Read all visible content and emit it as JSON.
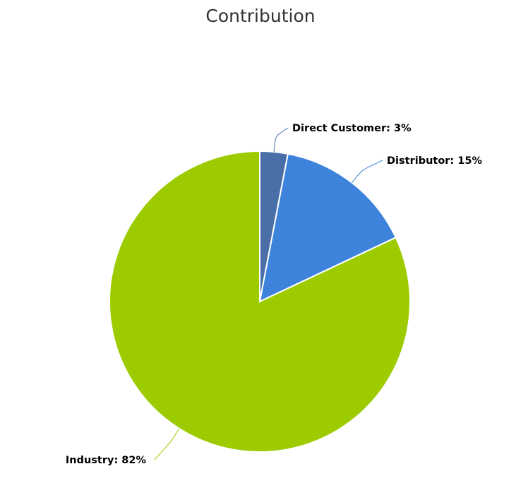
{
  "chart_data": {
    "type": "pie",
    "title": "Contribution",
    "start_angle_deg": 0,
    "direction": "clockwise",
    "slices": [
      {
        "name": "Direct Customer",
        "value": 3,
        "label": "Direct Customer: 3%",
        "color": "#4a6fa8"
      },
      {
        "name": "Distributor",
        "value": 15,
        "label": "Distributor: 15%",
        "color": "#3d83dc"
      },
      {
        "name": "Industry",
        "value": 82,
        "label": "Industry: 82%",
        "color": "#9ccb00"
      }
    ],
    "legend": "none",
    "data_labels": "outside with connector lines"
  }
}
